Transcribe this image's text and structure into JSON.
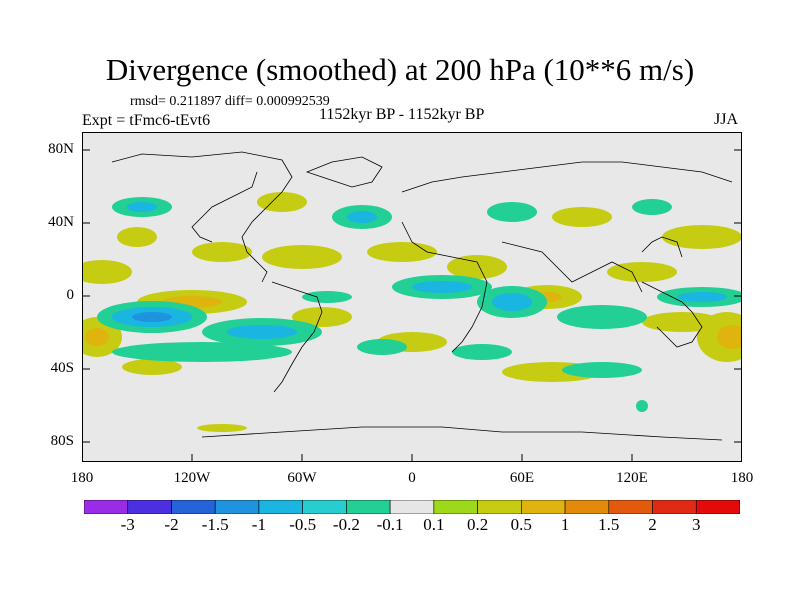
{
  "title": "Divergence (smoothed) at 200 hPa (10**6 m/s)",
  "stats": "rmsd= 0.211897 diff= 0.000992539",
  "experiment": "Expt = tFmc6-tEvt6",
  "period": "1152kyr BP - 1152kyr BP",
  "season": "JJA",
  "lat_labels": [
    "80N",
    "40N",
    "0",
    "40S",
    "80S"
  ],
  "lon_labels": [
    "180",
    "120W",
    "60W",
    "0",
    "60E",
    "120E",
    "180"
  ],
  "colorbar": {
    "labels": [
      "-3",
      "-2",
      "-1.5",
      "-1",
      "-0.5",
      "-0.2",
      "-0.1",
      "0.1",
      "0.2",
      "0.5",
      "1",
      "1.5",
      "2",
      "3"
    ],
    "colors": [
      "#9a2be6",
      "#4b2fe0",
      "#2563d8",
      "#1d94dd",
      "#1ab5e0",
      "#27cdd0",
      "#22cf95",
      "#e6e6e6",
      "#9ed81a",
      "#c6cc12",
      "#dfb40e",
      "#e48a0a",
      "#e45a0c",
      "#e02a14",
      "#e20a0a"
    ]
  },
  "colors": {
    "land_gray": "#e8e8e8",
    "coast": "#000000"
  }
}
